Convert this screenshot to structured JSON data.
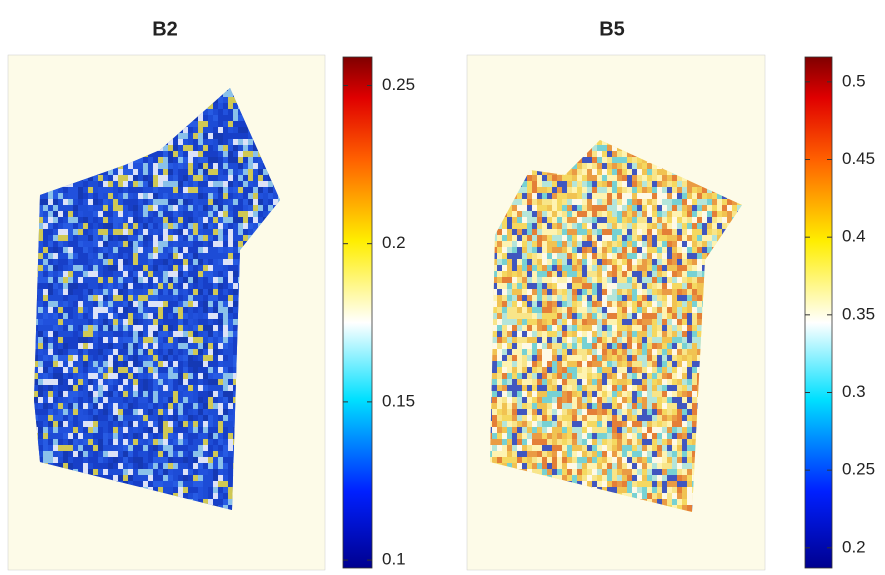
{
  "chart_data": [
    {
      "type": "heatmap",
      "title": "B2",
      "clim": [
        0.0975,
        0.259
      ],
      "cticks": [
        0.1,
        0.15,
        0.2,
        0.25
      ]
    },
    {
      "type": "heatmap",
      "title": "B5",
      "clim": [
        0.187,
        0.516
      ],
      "cticks": [
        0.2,
        0.25,
        0.3,
        0.35,
        0.4,
        0.45,
        0.5
      ]
    }
  ]
}
